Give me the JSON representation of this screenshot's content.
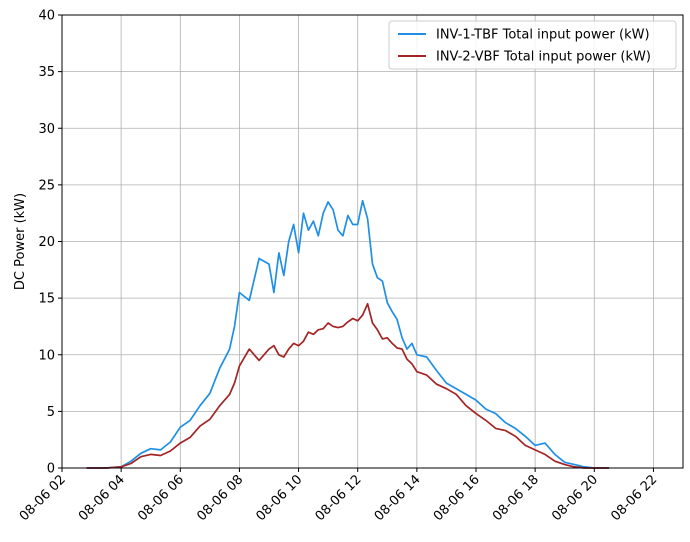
{
  "chart_data": {
    "type": "line",
    "title": "",
    "xlabel": "",
    "ylabel": "DC Power (kW)",
    "ylim": [
      0,
      40
    ],
    "xlim": [
      "08-06 02:00",
      "08-06 23:00"
    ],
    "x_unit": "hour of 08-06",
    "y_ticks": [
      "0",
      "5",
      "10",
      "15",
      "20",
      "25",
      "30",
      "35",
      "40"
    ],
    "x_ticks": [
      "08-06 02",
      "08-06 04",
      "08-06 06",
      "08-06 08",
      "08-06 10",
      "08-06 12",
      "08-06 14",
      "08-06 16",
      "08-06 18",
      "08-06 20",
      "08-06 22"
    ],
    "grid": true,
    "legend_position": "top-right",
    "x": [
      "02:50",
      "03:30",
      "04:00",
      "04:20",
      "04:40",
      "05:00",
      "05:20",
      "05:40",
      "06:00",
      "06:20",
      "06:40",
      "07:00",
      "07:20",
      "07:40",
      "07:50",
      "08:00",
      "08:20",
      "08:40",
      "09:00",
      "09:10",
      "09:20",
      "09:30",
      "09:40",
      "09:50",
      "10:00",
      "10:10",
      "10:20",
      "10:30",
      "10:40",
      "10:50",
      "11:00",
      "11:10",
      "11:20",
      "11:30",
      "11:40",
      "11:50",
      "12:00",
      "12:10",
      "12:20",
      "12:30",
      "12:40",
      "12:50",
      "13:00",
      "13:10",
      "13:20",
      "13:30",
      "13:40",
      "13:50",
      "14:00",
      "14:20",
      "14:40",
      "15:00",
      "15:20",
      "15:40",
      "16:00",
      "16:20",
      "16:40",
      "17:00",
      "17:20",
      "17:40",
      "18:00",
      "18:20",
      "18:40",
      "19:00",
      "19:20",
      "19:40",
      "20:00",
      "20:20",
      "20:30"
    ],
    "series": [
      {
        "name": "INV-1-TBF Total input power (kW)",
        "color": "#1f8fe6",
        "values": [
          0,
          0,
          0.1,
          0.6,
          1.3,
          1.7,
          1.6,
          2.3,
          3.6,
          4.2,
          5.5,
          6.6,
          8.8,
          10.5,
          12.5,
          15.5,
          14.8,
          18.5,
          18,
          15.5,
          19,
          17,
          20,
          21.5,
          19,
          22.5,
          21,
          21.8,
          20.5,
          22.5,
          23.5,
          22.8,
          21,
          20.5,
          22.3,
          21.5,
          21.5,
          23.6,
          22,
          18,
          16.8,
          16.5,
          14.6,
          13.8,
          13.1,
          11.5,
          10.5,
          11,
          10,
          9.8,
          8.6,
          7.5,
          7,
          6.5,
          6,
          5.2,
          4.8,
          4,
          3.5,
          2.8,
          2,
          2.2,
          1.2,
          0.5,
          0.3,
          0.1,
          0,
          0,
          0
        ]
      },
      {
        "name": "INV-2-VBF Total input power (kW)",
        "color": "#a32424",
        "values": [
          0,
          0,
          0.1,
          0.4,
          1.0,
          1.2,
          1.1,
          1.5,
          2.2,
          2.7,
          3.7,
          4.3,
          5.5,
          6.5,
          7.5,
          9,
          10.5,
          9.5,
          10.5,
          10.8,
          10,
          9.8,
          10.5,
          11,
          10.8,
          11.2,
          12,
          11.8,
          12.2,
          12.3,
          12.8,
          12.5,
          12.4,
          12.5,
          12.9,
          13.2,
          13,
          13.5,
          14.5,
          12.8,
          12.2,
          11.4,
          11.5,
          11,
          10.6,
          10.5,
          9.6,
          9.2,
          8.5,
          8.2,
          7.4,
          7,
          6.5,
          5.5,
          4.8,
          4.2,
          3.5,
          3.3,
          2.8,
          2,
          1.6,
          1.2,
          0.6,
          0.3,
          0.1,
          0,
          0,
          0,
          0
        ]
      }
    ]
  }
}
